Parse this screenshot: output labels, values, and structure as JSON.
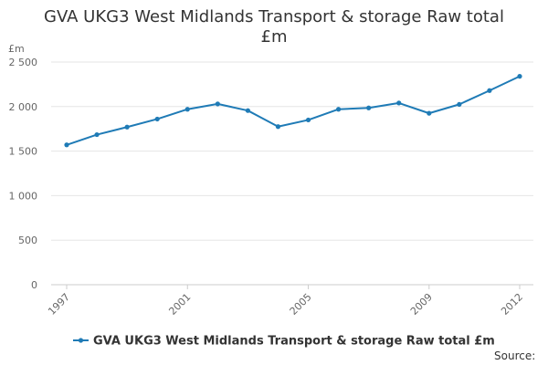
{
  "chart_data": {
    "type": "line",
    "title": "GVA UKG3 West Midlands Transport & storage Raw total £m",
    "title_lines": [
      "GVA UKG3 West Midlands Transport & storage Raw total",
      "£m"
    ],
    "ylabel": "£m",
    "xlabel": "",
    "x": [
      1997,
      1998,
      1999,
      2000,
      2001,
      2002,
      2003,
      2004,
      2005,
      2006,
      2007,
      2008,
      2009,
      2010,
      2011,
      2012
    ],
    "x_tick_labels": [
      "1997",
      "2001",
      "2005",
      "2009",
      "2012"
    ],
    "x_tick_values": [
      1997,
      2001,
      2005,
      2009,
      2012
    ],
    "xlim": [
      1997,
      2012
    ],
    "ylim": [
      0,
      2500
    ],
    "y_ticks": [
      0,
      500,
      1000,
      1500,
      2000,
      2500
    ],
    "y_tick_labels": [
      "0",
      "500",
      "1 000",
      "1 500",
      "2 000",
      "2 500"
    ],
    "grid": true,
    "legend_position": "bottom",
    "series": [
      {
        "name": "GVA UKG3 West Midlands Transport & storage Raw total £m",
        "color": "#1f7bb6",
        "values": [
          1570,
          1685,
          1770,
          1860,
          1970,
          2030,
          1955,
          1775,
          1850,
          1970,
          1985,
          2040,
          1925,
          2025,
          2180,
          2340
        ]
      }
    ],
    "source_label": "Source:"
  }
}
